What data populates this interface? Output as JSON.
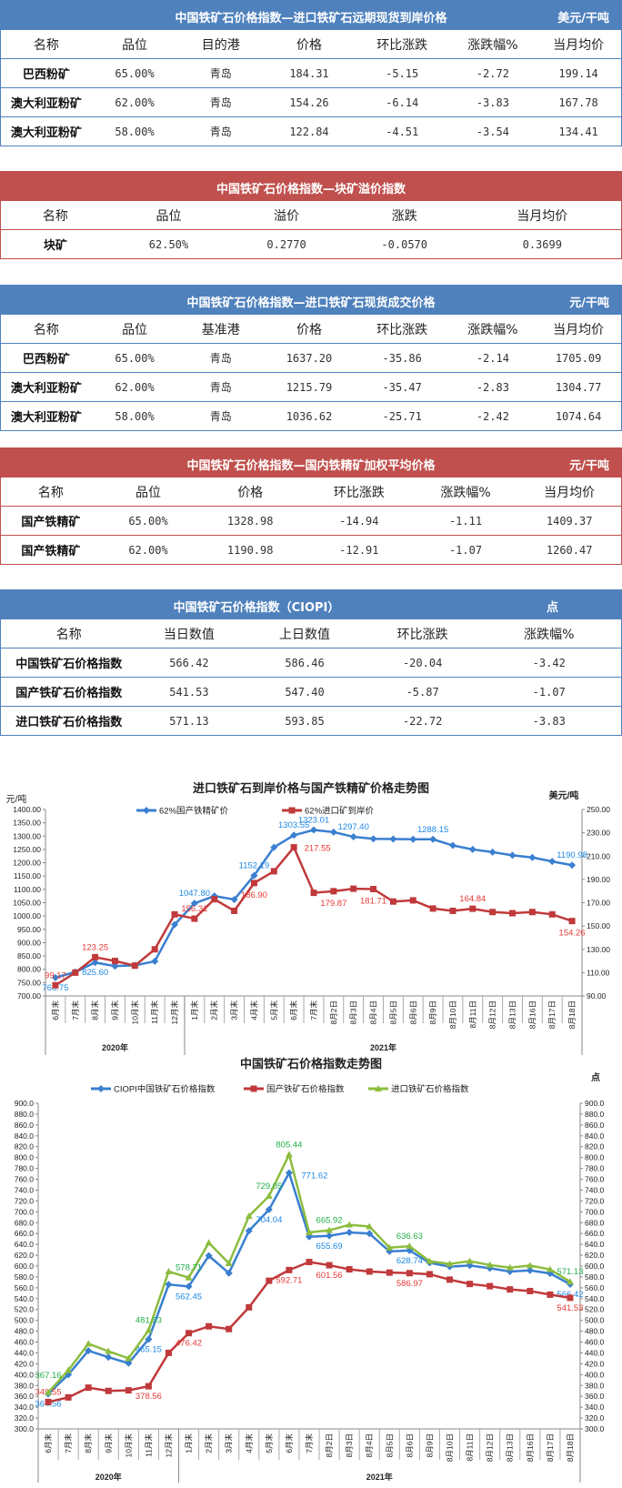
{
  "tables": [
    {
      "title": "中国铁矿石价格指数—进口铁矿石远期现货到岸价格",
      "unit": "美元/干吨",
      "color": "blue",
      "columns": [
        "名称",
        "品位",
        "目的港",
        "价格",
        "环比涨跌",
        "涨跌幅%",
        "当月均价"
      ],
      "rows": [
        [
          "巴西粉矿",
          "65.00%",
          "青岛",
          "184.31",
          "-5.15",
          "-2.72",
          "199.14"
        ],
        [
          "澳大利亚粉矿",
          "62.00%",
          "青岛",
          "154.26",
          "-6.14",
          "-3.83",
          "167.78"
        ],
        [
          "澳大利亚粉矿",
          "58.00%",
          "青岛",
          "122.84",
          "-4.51",
          "-3.54",
          "134.41"
        ]
      ]
    },
    {
      "title": "中国铁矿石价格指数—块矿溢价指数",
      "unit": "",
      "color": "red",
      "columns": [
        "名称",
        "品位",
        "溢价",
        "涨跌",
        "当月均价"
      ],
      "rows": [
        [
          "块矿",
          "62.50%",
          "0.2770",
          "-0.0570",
          "0.3699"
        ]
      ]
    },
    {
      "title": "中国铁矿石价格指数—进口铁矿石现货成交价格",
      "unit": "元/干吨",
      "color": "blue",
      "columns": [
        "名称",
        "品位",
        "基准港",
        "价格",
        "环比涨跌",
        "涨跌幅%",
        "当月均价"
      ],
      "rows": [
        [
          "巴西粉矿",
          "65.00%",
          "青岛",
          "1637.20",
          "-35.86",
          "-2.14",
          "1705.09"
        ],
        [
          "澳大利亚粉矿",
          "62.00%",
          "青岛",
          "1215.79",
          "-35.47",
          "-2.83",
          "1304.77"
        ],
        [
          "澳大利亚粉矿",
          "58.00%",
          "青岛",
          "1036.62",
          "-25.71",
          "-2.42",
          "1074.64"
        ]
      ]
    },
    {
      "title": "中国铁矿石价格指数—国内铁精矿加权平均价格",
      "unit": "元/干吨",
      "color": "red",
      "columns": [
        "名称",
        "品位",
        "价格",
        "环比涨跌",
        "涨跌幅%",
        "当月均价"
      ],
      "rows": [
        [
          "国产铁精矿",
          "65.00%",
          "1328.98",
          "-14.94",
          "-1.11",
          "1409.37"
        ],
        [
          "国产铁精矿",
          "62.00%",
          "1190.98",
          "-12.91",
          "-1.07",
          "1260.47"
        ]
      ]
    },
    {
      "title": "中国铁矿石价格指数（CIOPI）",
      "unit": "点",
      "color": "blue",
      "columns": [
        "名称",
        "当日数值",
        "上日数值",
        "环比涨跌",
        "涨跌幅%"
      ],
      "rows": [
        [
          "中国铁矿石价格指数",
          "566.42",
          "586.46",
          "-20.04",
          "-3.42"
        ],
        [
          "国产铁矿石价格指数",
          "541.53",
          "547.40",
          "-5.87",
          "-1.07"
        ],
        [
          "进口铁矿石价格指数",
          "571.13",
          "593.85",
          "-22.72",
          "-3.83"
        ]
      ]
    }
  ],
  "chart_data": [
    {
      "type": "line",
      "title": "进口铁矿石到岸价格与国产铁精矿价格走势图",
      "ylabel": "元/吨",
      "y2label": "美元/吨",
      "ylim": [
        700,
        1400
      ],
      "ystep": 50,
      "y2lim": [
        90,
        250
      ],
      "y2step": 20,
      "ydecimals": 2,
      "grid": false,
      "legend": "top",
      "categories": [
        "6月末",
        "7月末",
        "8月末",
        "9月末",
        "10月末",
        "11月末",
        "12月末",
        "1月末",
        "2月末",
        "3月末",
        "4月末",
        "5月末",
        "6月末",
        "7月末",
        "8月2日",
        "8月3日",
        "8月4日",
        "8月5日",
        "8月6日",
        "8月9日",
        "8月10日",
        "8月11日",
        "8月12日",
        "8月13日",
        "8月16日",
        "8月17日",
        "8月18日"
      ],
      "groups": [
        {
          "label": "2020年",
          "count": 7
        },
        {
          "label": "2021年",
          "count": 20
        }
      ],
      "series": [
        {
          "name": "62%国产铁精矿价",
          "axis": "left",
          "color": "#3a7fd0",
          "marker": "diamond",
          "labelColor": "#1e88e5",
          "values": [
            768.75,
            790,
            825.6,
            812,
            815,
            830,
            968,
            1047.8,
            1075,
            1062,
            1152.19,
            1258,
            1303.55,
            1323.01,
            1315,
            1297.4,
            1290,
            1289,
            1288,
            1288.15,
            1265,
            1250,
            1240,
            1228,
            1220,
            1205,
            1190.98
          ],
          "labeled": [
            0,
            2,
            7,
            10,
            12,
            13,
            15,
            19,
            26
          ]
        },
        {
          "name": "62%进口矿到岸价",
          "axis": "right",
          "color": "#c0393b",
          "marker": "square",
          "labelColor": "#e53935",
          "values": [
            99.17,
            110,
            123.25,
            120,
            116,
            130,
            160,
            156.31,
            173,
            163,
            186.9,
            197,
            217.55,
            178.5,
            179.87,
            182,
            181.71,
            171,
            172,
            165,
            163,
            164.84,
            162,
            161,
            162,
            160,
            154.26
          ],
          "labeled": [
            0,
            2,
            7,
            10,
            12,
            14,
            16,
            21,
            26
          ]
        }
      ]
    },
    {
      "type": "line",
      "title": "中国铁矿石价格指数走势图",
      "y2label": "点",
      "ylim": [
        300,
        900
      ],
      "ystep": 20,
      "y2lim": [
        300,
        900
      ],
      "y2step": 20,
      "ydecimals": 1,
      "grid": false,
      "legend": "top",
      "categories": [
        "6月末",
        "7月末",
        "8月末",
        "9月末",
        "10月末",
        "11月末",
        "12月末",
        "1月末",
        "2月末",
        "3月末",
        "4月末",
        "5月末",
        "6月末",
        "7月末",
        "8月2日",
        "8月3日",
        "8月4日",
        "8月5日",
        "8月6日",
        "8月9日",
        "8月10日",
        "8月11日",
        "8月12日",
        "8月13日",
        "8月16日",
        "8月17日",
        "8月18日"
      ],
      "groups": [
        {
          "label": "2020年",
          "count": 7
        },
        {
          "label": "2021年",
          "count": 20
        }
      ],
      "series": [
        {
          "name": "CIOPI中国铁矿石价格指数",
          "axis": "left",
          "color": "#3a7fd0",
          "marker": "diamond",
          "labelColor": "#1e88e5",
          "values": [
            364.56,
            400,
            444,
            432,
            421,
            465.15,
            566,
            562.45,
            619,
            587,
            665,
            704.04,
            771.62,
            654,
            655.69,
            662,
            660,
            627,
            628.74,
            606,
            599,
            601,
            596,
            590,
            592,
            586.46,
            566.42
          ],
          "labeled": [
            0,
            5,
            7,
            11,
            12,
            14,
            18,
            26
          ]
        },
        {
          "name": "国产铁矿石价格指数",
          "axis": "left",
          "color": "#c0393b",
          "marker": "square",
          "labelColor": "#e53935",
          "values": [
            349.55,
            358,
            376,
            370,
            371,
            378.56,
            440,
            476.42,
            489,
            484,
            524,
            573,
            592.71,
            607.5,
            601.56,
            594,
            590,
            588,
            586.97,
            585,
            575,
            567,
            563,
            557,
            554,
            547.4,
            541.53
          ],
          "labeled": [
            0,
            5,
            7,
            12,
            14,
            18,
            26
          ]
        },
        {
          "name": "进口铁矿石价格指数",
          "axis": "left",
          "color": "#8cbd3f",
          "marker": "triangle",
          "labelColor": "#21b04b",
          "values": [
            367.16,
            408,
            457,
            443,
            430,
            481.53,
            590,
            578.71,
            643,
            605,
            692,
            729.05,
            805.44,
            662,
            665.92,
            676,
            673,
            634,
            636.63,
            609,
            604,
            609,
            602,
            597,
            601,
            593.85,
            571.13
          ],
          "labeled": [
            0,
            5,
            7,
            11,
            12,
            14,
            18,
            26
          ]
        }
      ]
    }
  ]
}
